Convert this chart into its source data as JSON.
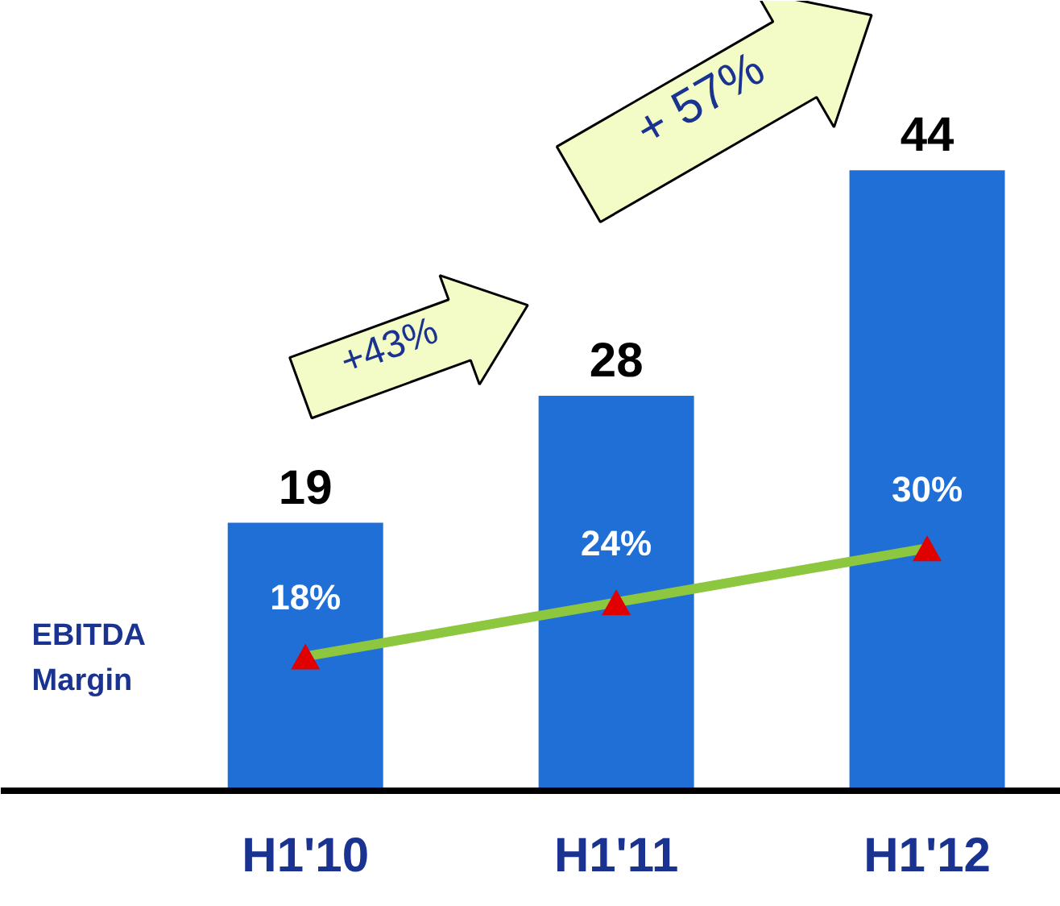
{
  "chart_data": {
    "type": "bar",
    "categories": [
      "H1'10",
      "H1'11",
      "H1'12"
    ],
    "series": [
      {
        "values": [
          19,
          28,
          44
        ],
        "color": "#1f6fd6",
        "value_labels": [
          "19",
          "28",
          "44"
        ]
      },
      {
        "type": "line",
        "name": "EBITDA Margin",
        "axis": "y2",
        "values": [
          18,
          24,
          30
        ],
        "value_labels": [
          "18%",
          "24%",
          "30%"
        ],
        "color": "#8dc63f",
        "colors": [
          "#e00000",
          "#e00000",
          "#e00000"
        ]
      }
    ],
    "marker": "triangle",
    "tick_labels": "x",
    "grid": false,
    "legend": false,
    "annotations": [
      "+43%",
      "+ 57%"
    ]
  }
}
